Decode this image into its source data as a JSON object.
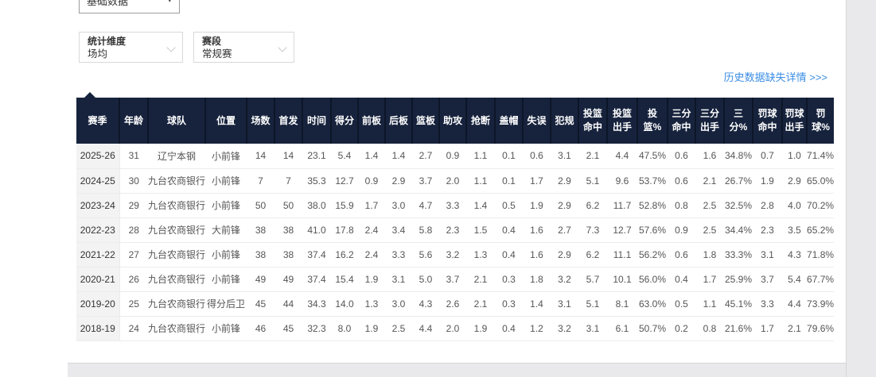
{
  "colors": {
    "header_bg": "#17233d",
    "header_text": "#ffffff",
    "link_blue": "#3a8ee6",
    "row_border": "#ececec",
    "fixed_col_bg": "#f3f3f3",
    "body_text": "#555555",
    "gutter": "#e9e9eb"
  },
  "top_select": {
    "value": "基础数据"
  },
  "filters": [
    {
      "label": "统计维度",
      "value": "场均"
    },
    {
      "label": "赛段",
      "value": "常规赛"
    }
  ],
  "history_link": "历史数据缺失详情 >>>",
  "table": {
    "columns": [
      "赛季",
      "年龄",
      "球队",
      "位置",
      "场数",
      "首发",
      "时间",
      "得分",
      "前板",
      "后板",
      "篮板",
      "助攻",
      "抢断",
      "盖帽",
      "失误",
      "犯规",
      "投篮命中",
      "投篮出手",
      "投篮%",
      "三分命中",
      "三分出手",
      "三分%",
      "罚球命中",
      "罚球出手",
      "罚球%"
    ],
    "rows": [
      [
        "2025-26",
        "31",
        "辽宁本钢",
        "小前锋",
        "14",
        "14",
        "23.1",
        "5.4",
        "1.4",
        "1.4",
        "2.7",
        "0.9",
        "1.1",
        "0.1",
        "0.6",
        "3.1",
        "2.1",
        "4.4",
        "47.5%",
        "0.6",
        "1.6",
        "34.8%",
        "0.7",
        "1.0",
        "71.4%"
      ],
      [
        "2024-25",
        "30",
        "九台农商银行",
        "小前锋",
        "7",
        "7",
        "35.3",
        "12.7",
        "0.9",
        "2.9",
        "3.7",
        "2.0",
        "1.1",
        "0.1",
        "1.7",
        "2.9",
        "5.1",
        "9.6",
        "53.7%",
        "0.6",
        "2.1",
        "26.7%",
        "1.9",
        "2.9",
        "65.0%"
      ],
      [
        "2023-24",
        "29",
        "九台农商银行",
        "小前锋",
        "50",
        "50",
        "38.0",
        "15.9",
        "1.7",
        "3.0",
        "4.7",
        "3.3",
        "1.4",
        "0.5",
        "1.9",
        "2.9",
        "6.2",
        "11.7",
        "52.8%",
        "0.8",
        "2.5",
        "32.5%",
        "2.8",
        "4.0",
        "70.2%"
      ],
      [
        "2022-23",
        "28",
        "九台农商银行",
        "大前锋",
        "38",
        "38",
        "41.0",
        "17.8",
        "2.4",
        "3.4",
        "5.8",
        "2.3",
        "1.5",
        "0.4",
        "1.6",
        "2.7",
        "7.3",
        "12.7",
        "57.6%",
        "0.9",
        "2.5",
        "34.4%",
        "2.3",
        "3.5",
        "65.2%"
      ],
      [
        "2021-22",
        "27",
        "九台农商银行",
        "小前锋",
        "38",
        "38",
        "37.4",
        "16.2",
        "2.4",
        "3.3",
        "5.6",
        "3.2",
        "1.3",
        "0.4",
        "1.6",
        "2.9",
        "6.2",
        "11.1",
        "56.2%",
        "0.6",
        "1.8",
        "33.3%",
        "3.1",
        "4.3",
        "71.8%"
      ],
      [
        "2020-21",
        "26",
        "九台农商银行",
        "小前锋",
        "49",
        "49",
        "37.4",
        "15.4",
        "1.9",
        "3.1",
        "5.0",
        "3.7",
        "2.1",
        "0.3",
        "1.8",
        "3.2",
        "5.7",
        "10.1",
        "56.0%",
        "0.4",
        "1.7",
        "25.9%",
        "3.7",
        "5.4",
        "67.7%"
      ],
      [
        "2019-20",
        "25",
        "九台农商银行",
        "得分后卫",
        "45",
        "44",
        "34.3",
        "14.0",
        "1.3",
        "3.0",
        "4.3",
        "2.6",
        "2.1",
        "0.3",
        "1.4",
        "3.1",
        "5.1",
        "8.1",
        "63.0%",
        "0.5",
        "1.1",
        "45.1%",
        "3.3",
        "4.4",
        "73.9%"
      ],
      [
        "2018-19",
        "24",
        "九台农商银行",
        "小前锋",
        "46",
        "45",
        "32.3",
        "8.0",
        "1.9",
        "2.5",
        "4.4",
        "2.0",
        "1.9",
        "0.4",
        "1.2",
        "3.2",
        "3.1",
        "6.1",
        "50.7%",
        "0.2",
        "0.8",
        "21.6%",
        "1.7",
        "2.1",
        "79.6%"
      ]
    ]
  }
}
